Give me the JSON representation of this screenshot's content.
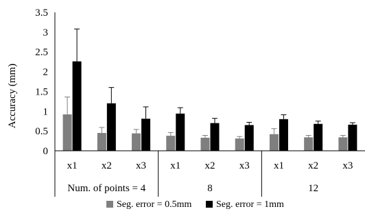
{
  "chart_data": {
    "type": "bar",
    "ylabel": "Accuracy (mm)",
    "ylim": [
      0,
      3.5
    ],
    "yticks": [
      "0",
      "0.5",
      "1",
      "1.5",
      "2",
      "2.5",
      "3",
      "3.5"
    ],
    "grid": false,
    "legend_position": "bottom",
    "categories": [
      "x1",
      "x2",
      "x3",
      "x1",
      "x2",
      "x3",
      "x1",
      "x2",
      "x3"
    ],
    "groups": [
      {
        "label": "Num. of points = 4",
        "span": 3
      },
      {
        "label": "8",
        "span": 3
      },
      {
        "label": "12",
        "span": 3
      }
    ],
    "series": [
      {
        "name": "Seg. error = 0.5mm",
        "color": "#7f7f7f",
        "values": [
          0.92,
          0.45,
          0.44,
          0.38,
          0.33,
          0.31,
          0.42,
          0.34,
          0.34
        ],
        "errors": [
          0.44,
          0.14,
          0.1,
          0.08,
          0.06,
          0.05,
          0.14,
          0.05,
          0.05
        ]
      },
      {
        "name": "Seg. error = 1mm",
        "color": "#000000",
        "values": [
          2.26,
          1.2,
          0.81,
          0.94,
          0.7,
          0.65,
          0.8,
          0.68,
          0.66
        ],
        "errors": [
          0.82,
          0.4,
          0.3,
          0.15,
          0.12,
          0.07,
          0.11,
          0.07,
          0.05
        ]
      }
    ]
  }
}
